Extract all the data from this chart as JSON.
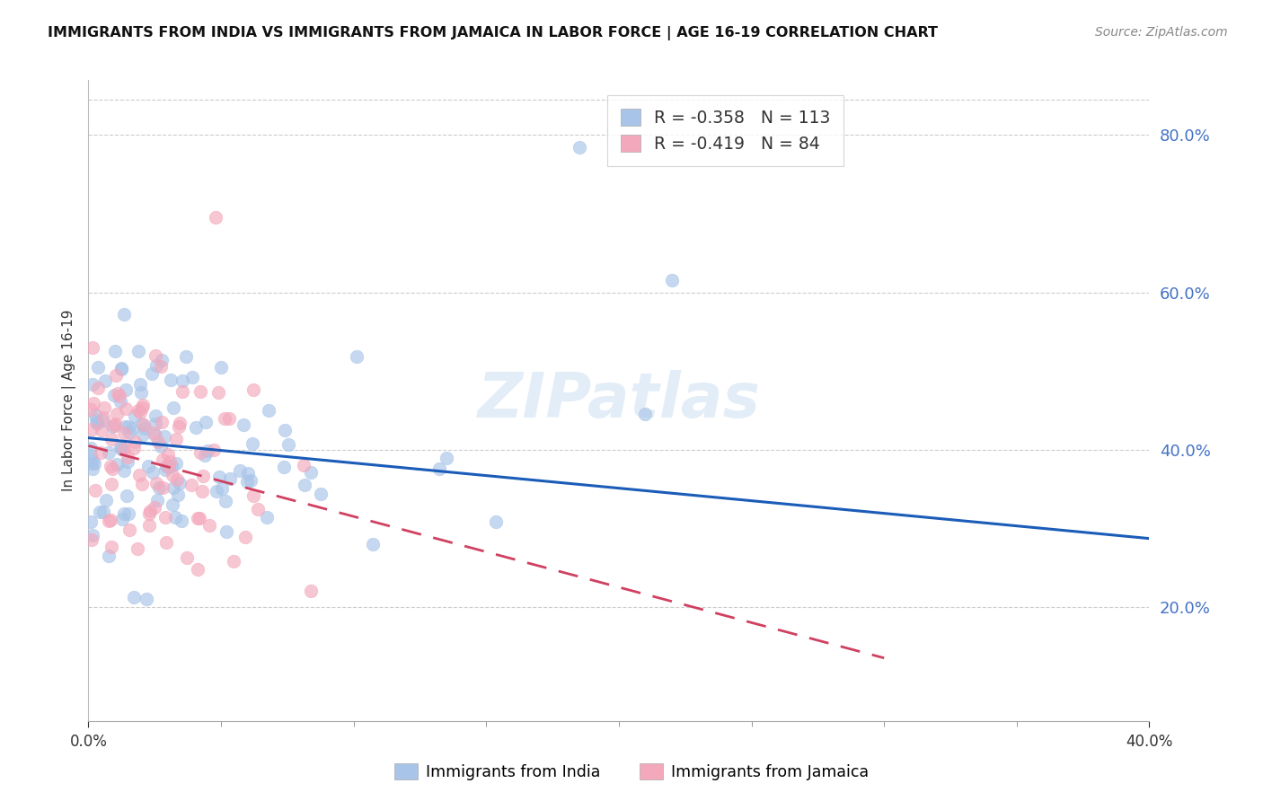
{
  "title": "IMMIGRANTS FROM INDIA VS IMMIGRANTS FROM JAMAICA IN LABOR FORCE | AGE 16-19 CORRELATION CHART",
  "source": "Source: ZipAtlas.com",
  "ylabel": "In Labor Force | Age 16-19",
  "xlim": [
    0.0,
    0.4
  ],
  "ylim": [
    0.055,
    0.87
  ],
  "yticks_right": [
    0.2,
    0.4,
    0.6,
    0.8
  ],
  "india_R": -0.358,
  "india_N": 113,
  "jamaica_R": -0.419,
  "jamaica_N": 84,
  "india_color": "#A8C4E8",
  "jamaica_color": "#F4A8BC",
  "india_line_color": "#1A5CB8",
  "jamaica_line_color": "#D04060",
  "watermark": "ZIPatlas",
  "legend_india": "Immigrants from India",
  "legend_jamaica": "Immigrants from Jamaica",
  "background_color": "#FFFFFF",
  "grid_color": "#CCCCCC",
  "title_color": "#111111",
  "right_label_color": "#4472C4"
}
